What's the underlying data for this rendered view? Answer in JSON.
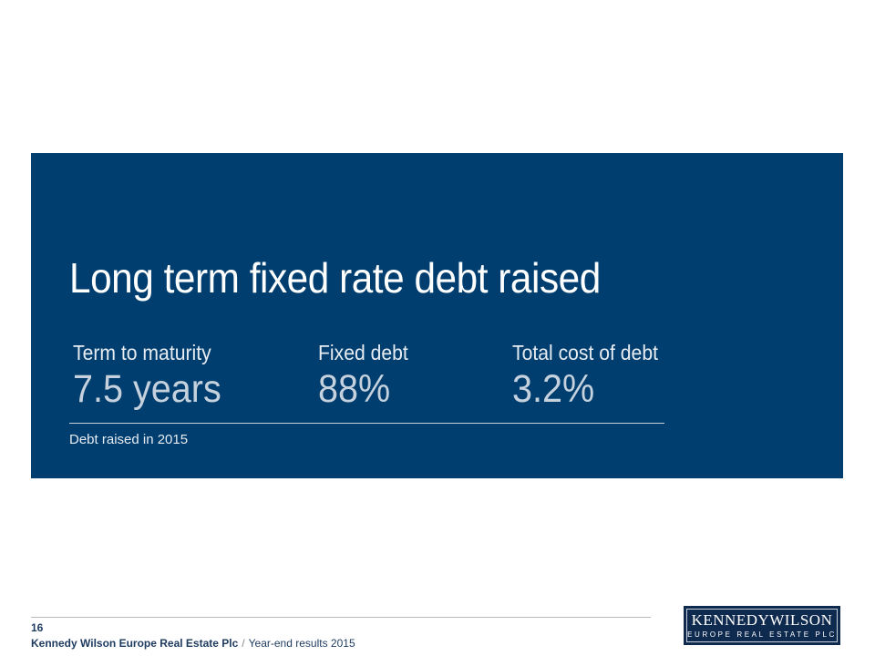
{
  "slide": {
    "title": "Long term fixed rate debt raised",
    "stats": [
      {
        "label": "Term to maturity",
        "value": "7.5 years"
      },
      {
        "label": "Fixed debt",
        "value": "88%"
      },
      {
        "label": "Total cost of debt",
        "value": "3.2%"
      }
    ],
    "note": "Debt raised in 2015"
  },
  "footer": {
    "page_number": "16",
    "company": "Kennedy Wilson Europe Real Estate Plc",
    "separator": "/",
    "report": "Year-end results 2015",
    "logo": {
      "name_first": "Kennedy",
      "name_second": "Wilson",
      "tagline": "EUROPE REAL ESTATE PLC"
    }
  }
}
